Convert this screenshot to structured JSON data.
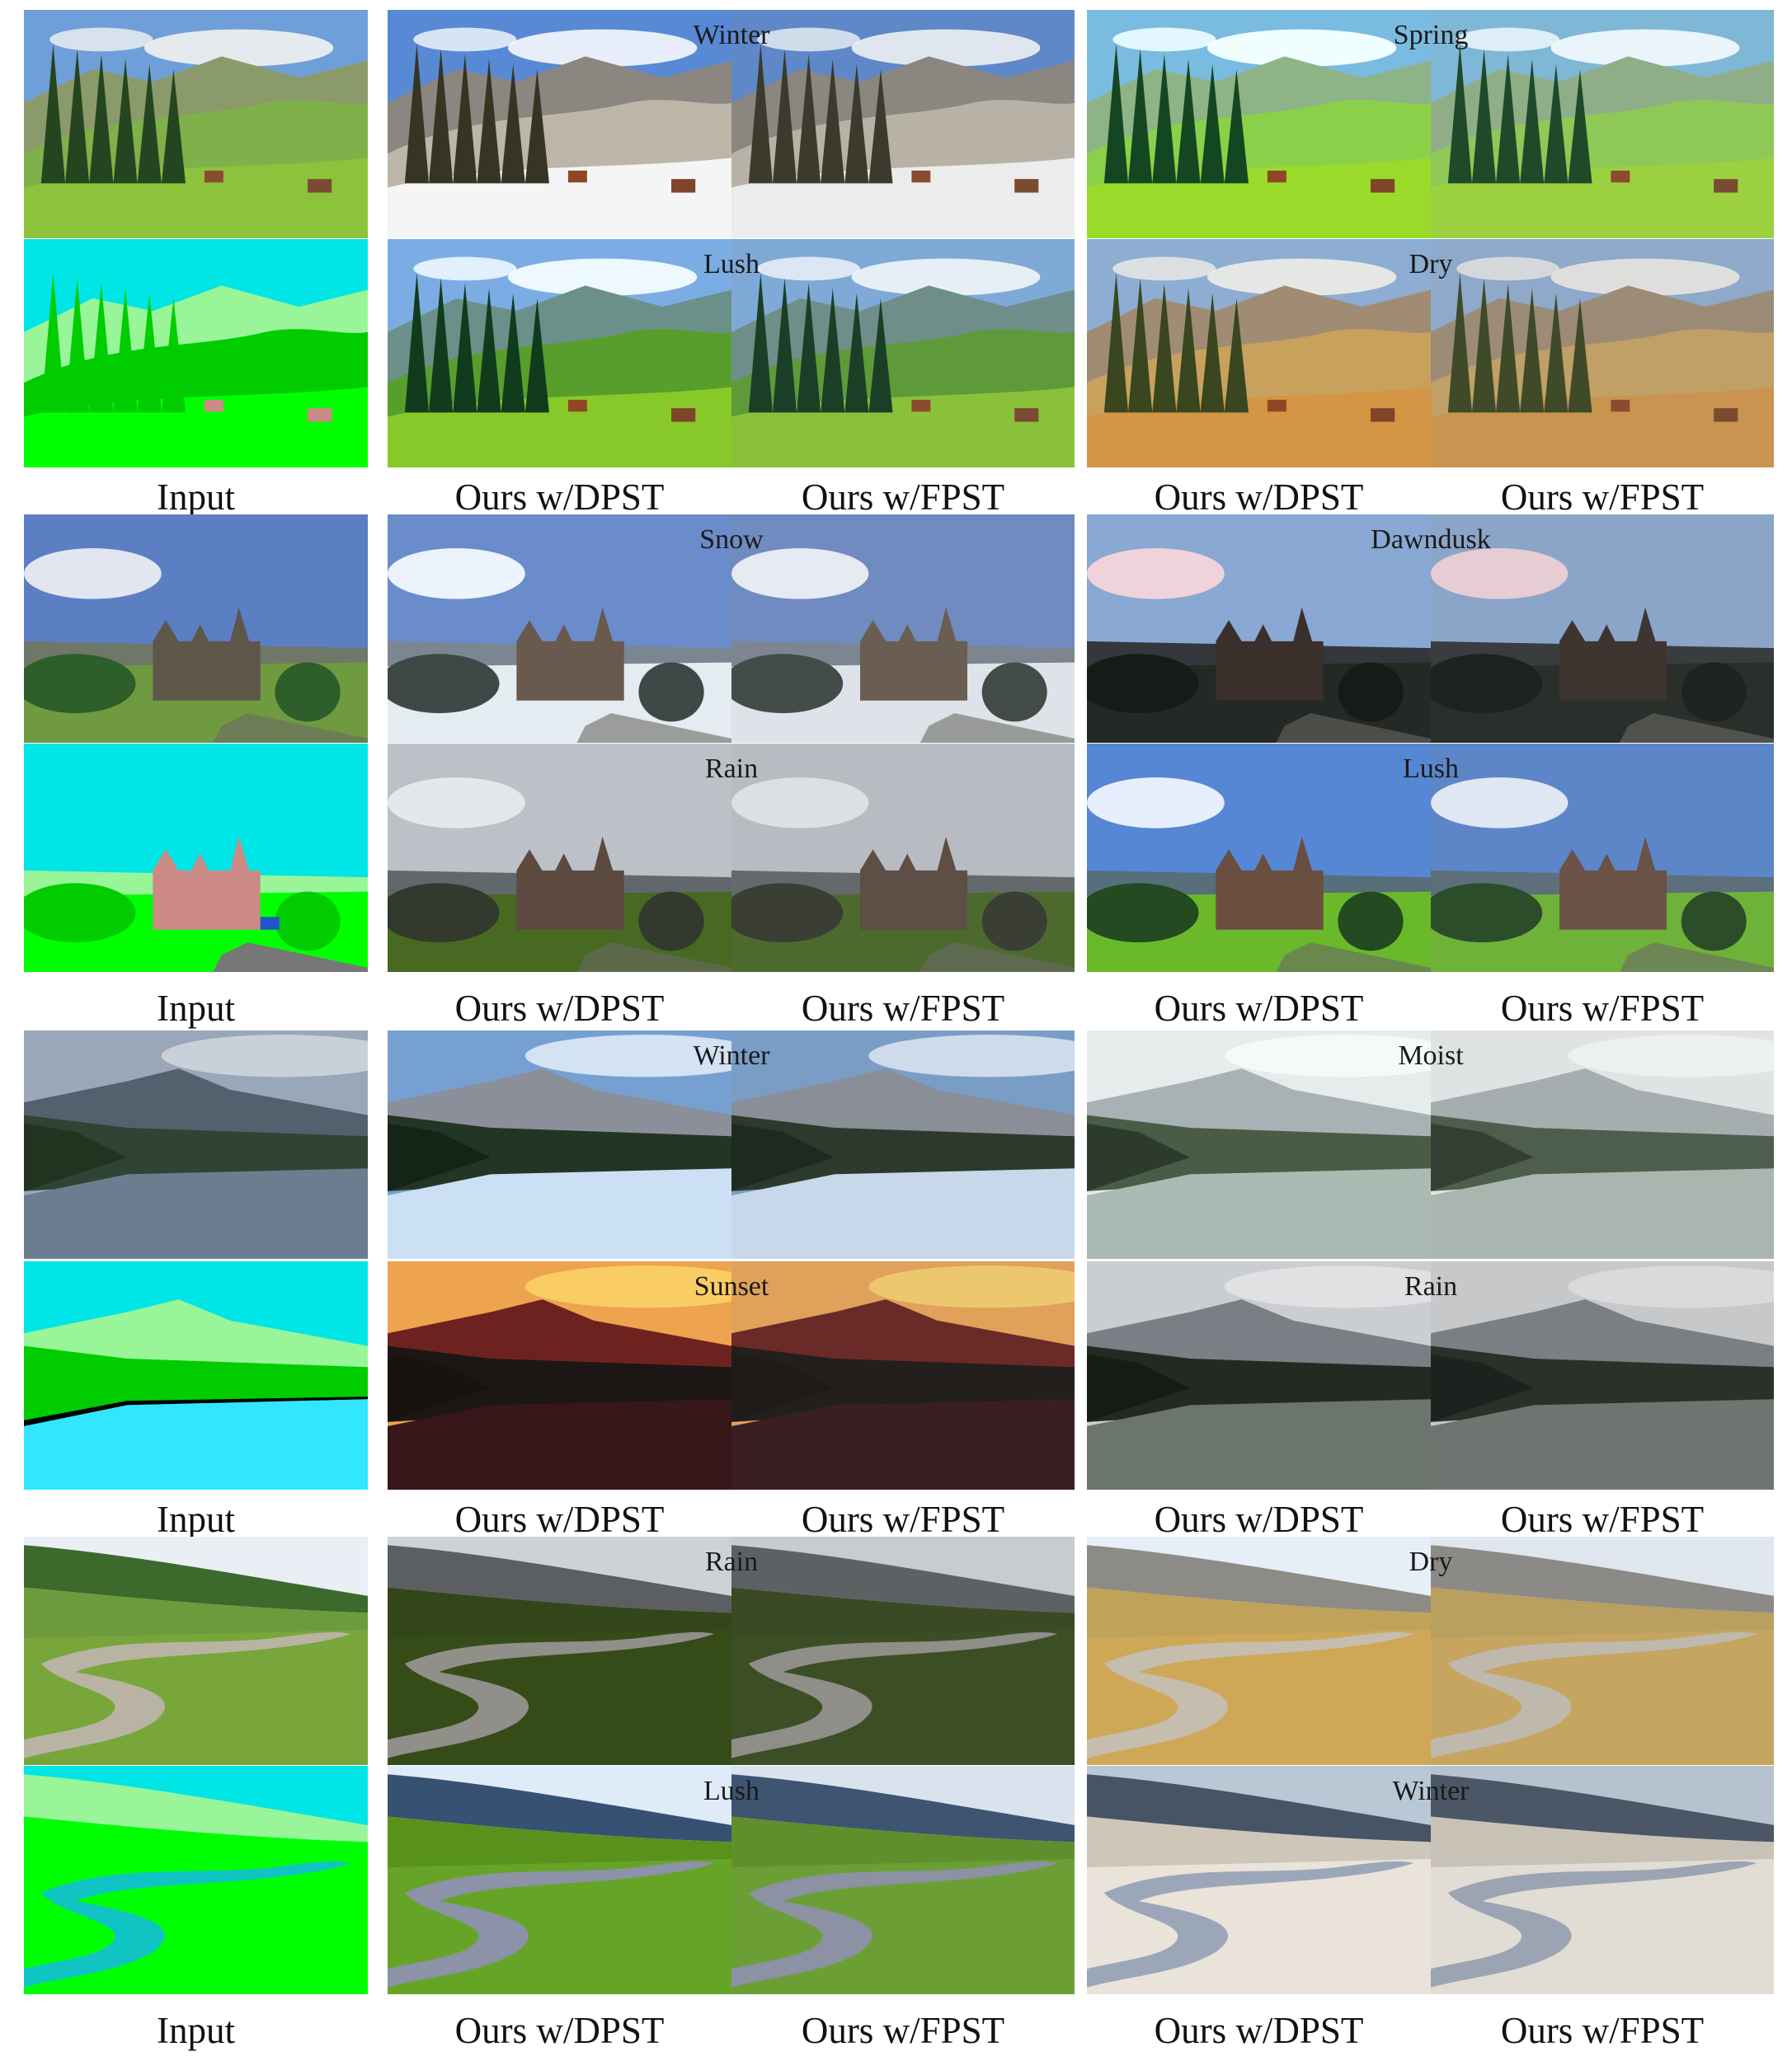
{
  "captions": {
    "input": "Input",
    "dpst": "Ours w/DPST",
    "fpst": "Ours w/FPST"
  },
  "groups": [
    {
      "name": "alpine-meadow",
      "attributes": [
        {
          "label": "Winter"
        },
        {
          "label": "Spring"
        },
        {
          "label": "Lush"
        },
        {
          "label": "Dry"
        }
      ]
    },
    {
      "name": "church-hill",
      "attributes": [
        {
          "label": "Snow"
        },
        {
          "label": "Dawndusk"
        },
        {
          "label": "Rain"
        },
        {
          "label": "Lush"
        }
      ]
    },
    {
      "name": "mountain-lake",
      "attributes": [
        {
          "label": "Winter"
        },
        {
          "label": "Moist"
        },
        {
          "label": "Sunset"
        },
        {
          "label": "Rain"
        }
      ]
    },
    {
      "name": "river-valley",
      "attributes": [
        {
          "label": "Rain"
        },
        {
          "label": "Dry"
        },
        {
          "label": "Lush"
        },
        {
          "label": "Winter"
        }
      ]
    }
  ],
  "palettes": {
    "alpine": {
      "photo": {
        "sky": "#6f9fd8",
        "cloud": "#f2f2f2",
        "mount": "#8b9a6a",
        "hill": "#7fb04a",
        "grass": "#8cc23c",
        "tree": "#24451f"
      },
      "Winter": {
        "sky": "#5f88c8",
        "cloud": "#eef1f4",
        "mount": "#8a8680",
        "hill": "#b8b2a6",
        "grass": "#ececec",
        "tree": "#3b3a2c"
      },
      "Spring": {
        "sky": "#7fb7d6",
        "cloud": "#f5fbff",
        "mount": "#8fae88",
        "hill": "#8ec856",
        "grass": "#9bd13e",
        "tree": "#1f4a2a"
      },
      "Lush": {
        "sky": "#7fa9d7",
        "cloud": "#f2f6fa",
        "mount": "#6f8e89",
        "hill": "#5e9a3a",
        "grass": "#8ac13a",
        "tree": "#1b3f26"
      },
      "Dry": {
        "sky": "#8ea9c9",
        "cloud": "#e7e4df",
        "mount": "#9c8b77",
        "hill": "#c0a066",
        "grass": "#c99450",
        "tree": "#3f4a29"
      }
    },
    "church": {
      "photo": {
        "sky": "#5c7fc4",
        "cloud": "#f0f2f6",
        "mount": "#6f7768",
        "hill": "#5e8e3a",
        "grass": "#6f9a3f",
        "tree": "#2e5e2a",
        "bldg": "#5f564a"
      },
      "Snow": {
        "sky": "#6f8bc0",
        "cloud": "#f2f4f8",
        "mount": "#7c8590",
        "hill": "#b8c2cc",
        "grass": "#dde3e8",
        "tree": "#444c4a",
        "bldg": "#6a5d52"
      },
      "Dawndusk": {
        "sky": "#8ba5c9",
        "cloud": "#efd2d4",
        "mount": "#3a3c40",
        "hill": "#2a2d2c",
        "grass": "#2b2f2c",
        "tree": "#1e2220",
        "bldg": "#3e3531"
      },
      "Rain": {
        "sky": "#b8bcc2",
        "cloud": "#e1e3e6",
        "mount": "#646a6c",
        "hill": "#4a5a36",
        "grass": "#4d6a2e",
        "tree": "#3a3e35",
        "bldg": "#5d4e46"
      },
      "Lush": {
        "sky": "#5d86c8",
        "cloud": "#eef1f6",
        "mount": "#5c6f7a",
        "hill": "#5fa53e",
        "grass": "#6fb23a",
        "tree": "#2c4d2a",
        "bldg": "#6a5246"
      }
    },
    "lake": {
      "photo": {
        "sky": "#9aa7b9",
        "cloud": "#d6dbe2",
        "mount": "#55606e",
        "hill": "#2f4434",
        "water": "#6b7d8f",
        "tree": "#22331f"
      },
      "Winter": {
        "sky": "#7a9dc6",
        "cloud": "#e3ebf3",
        "mount": "#8a8e96",
        "hill": "#2b3a2d",
        "water": "#c7d8ea",
        "tree": "#1d2a1f"
      },
      "Moist": {
        "sky": "#dfe3e4",
        "cloud": "#f0f2f2",
        "mount": "#a6adaf",
        "hill": "#4d5e4c",
        "water": "#a9b6b0",
        "tree": "#344033"
      },
      "Sunset": {
        "sky": "#e0a15a",
        "cloud": "#f0d174",
        "mount": "#6a2a28",
        "hill": "#231f1c",
        "water": "#3a1f22",
        "tree": "#1f1b18"
      },
      "Rain": {
        "sky": "#c6c8ca",
        "cloud": "#dedfe0",
        "mount": "#7a7f83",
        "hill": "#2b3029",
        "water": "#6e7570",
        "tree": "#1e221e"
      }
    },
    "river": {
      "photo": {
        "sky": "#e9eff5",
        "cloud": "#f7f9fb",
        "mount": "#3c6a2c",
        "hill": "#6c9a3c",
        "grass": "#7aa83a",
        "river": "#b9b3a4"
      },
      "Rain": {
        "sky": "#c8cccf",
        "cloud": "#dcdfe1",
        "mount": "#5e6164",
        "hill": "#3a4a25",
        "grass": "#3d5024",
        "river": "#8f8e89"
      },
      "Dry": {
        "sky": "#dfe6ee",
        "cloud": "#f2f4f6",
        "mount": "#8c8a86",
        "hill": "#b9a061",
        "grass": "#c8a661",
        "river": "#bfb9ad"
      },
      "Lush": {
        "sky": "#d9e3ee",
        "cloud": "#eef3f8",
        "mount": "#3e5470",
        "hill": "#5e8f2c",
        "grass": "#6da238",
        "river": "#8c91a3"
      },
      "Winter": {
        "sky": "#b6c2cd",
        "cloud": "#d9dfe5",
        "mount": "#4b5766",
        "hill": "#c8c2b6",
        "grass": "#e5e1d9",
        "river": "#9aa4b2"
      }
    },
    "seg": {
      "sky": "#00e5e5",
      "mount": "#98f598",
      "ground": "#00ff00",
      "tree": "#00cc00",
      "bldg": "#cc8a86",
      "water": "#33e6ff",
      "river": "#11c4c4",
      "dark": "#000000"
    }
  }
}
